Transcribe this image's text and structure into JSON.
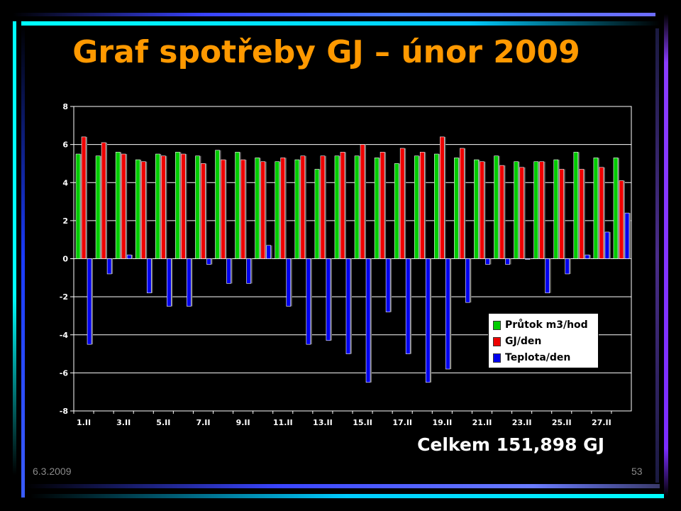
{
  "slide": {
    "title": "Graf spotřeby GJ – únor 2009",
    "total": "Celkem 151,898 GJ",
    "footer_date": "6.3.2009",
    "footer_page": "53"
  },
  "colors": {
    "title": "#ff9900",
    "series_green": "#00cc00",
    "series_red": "#ee0000",
    "series_blue": "#0000ee",
    "deco_cyan": "#00ffff",
    "deco_purple": "#8a3cff"
  },
  "chart_data": {
    "type": "bar",
    "ylim": [
      -8,
      8
    ],
    "yticks": [
      "8",
      "6",
      "4",
      "2",
      "0",
      "-2",
      "-4",
      "-6",
      "-8"
    ],
    "grid": true,
    "legend_position": "bottom-right",
    "categories": [
      "1.II",
      "2.II",
      "3.II",
      "4.II",
      "5.II",
      "6.II",
      "7.II",
      "8.II",
      "9.II",
      "10.II",
      "11.II",
      "12.II",
      "13.II",
      "14.II",
      "15.II",
      "16.II",
      "17.II",
      "18.II",
      "19.II",
      "20.II",
      "21.II",
      "22.II",
      "23.II",
      "24.II",
      "25.II",
      "26.II",
      "27.II",
      "28.II"
    ],
    "xtick_labels": [
      "1.II",
      "",
      "3.II",
      "",
      "5.II",
      "",
      "7.II",
      "",
      "9.II",
      "",
      "11.II",
      "",
      "13.II",
      "",
      "15.II",
      "",
      "17.II",
      "",
      "19.II",
      "",
      "21.II",
      "",
      "23.II",
      "",
      "25.II",
      "",
      "27.II",
      ""
    ],
    "series": [
      {
        "name": "Průtok m3/hod",
        "color": "#00cc00",
        "values": [
          5.5,
          5.4,
          5.6,
          5.2,
          5.5,
          5.6,
          5.4,
          5.7,
          5.6,
          5.3,
          5.1,
          5.2,
          4.7,
          5.4,
          5.4,
          5.3,
          5.0,
          5.4,
          5.5,
          5.3,
          5.2,
          5.4,
          5.1,
          5.1,
          5.2,
          5.6,
          5.3,
          5.3
        ]
      },
      {
        "name": "GJ/den",
        "color": "#ee0000",
        "values": [
          6.4,
          6.1,
          5.5,
          5.1,
          5.4,
          5.5,
          5.0,
          5.2,
          5.2,
          5.1,
          5.3,
          5.4,
          5.4,
          5.6,
          6.0,
          5.6,
          5.8,
          5.6,
          6.4,
          5.8,
          5.1,
          4.9,
          4.8,
          5.1,
          4.7,
          4.7,
          4.8,
          4.1
        ]
      },
      {
        "name": "Teplota/den",
        "color": "#0000ee",
        "values": [
          -4.5,
          -0.8,
          0.2,
          -1.8,
          -2.5,
          -2.5,
          -0.3,
          -1.3,
          -1.3,
          0.7,
          -2.5,
          -4.5,
          -4.3,
          -5.0,
          -6.5,
          -2.8,
          -5.0,
          -6.5,
          -5.8,
          -2.3,
          -0.3,
          -0.3,
          0.0,
          -1.8,
          -0.8,
          0.2,
          1.4,
          2.4
        ]
      }
    ]
  }
}
